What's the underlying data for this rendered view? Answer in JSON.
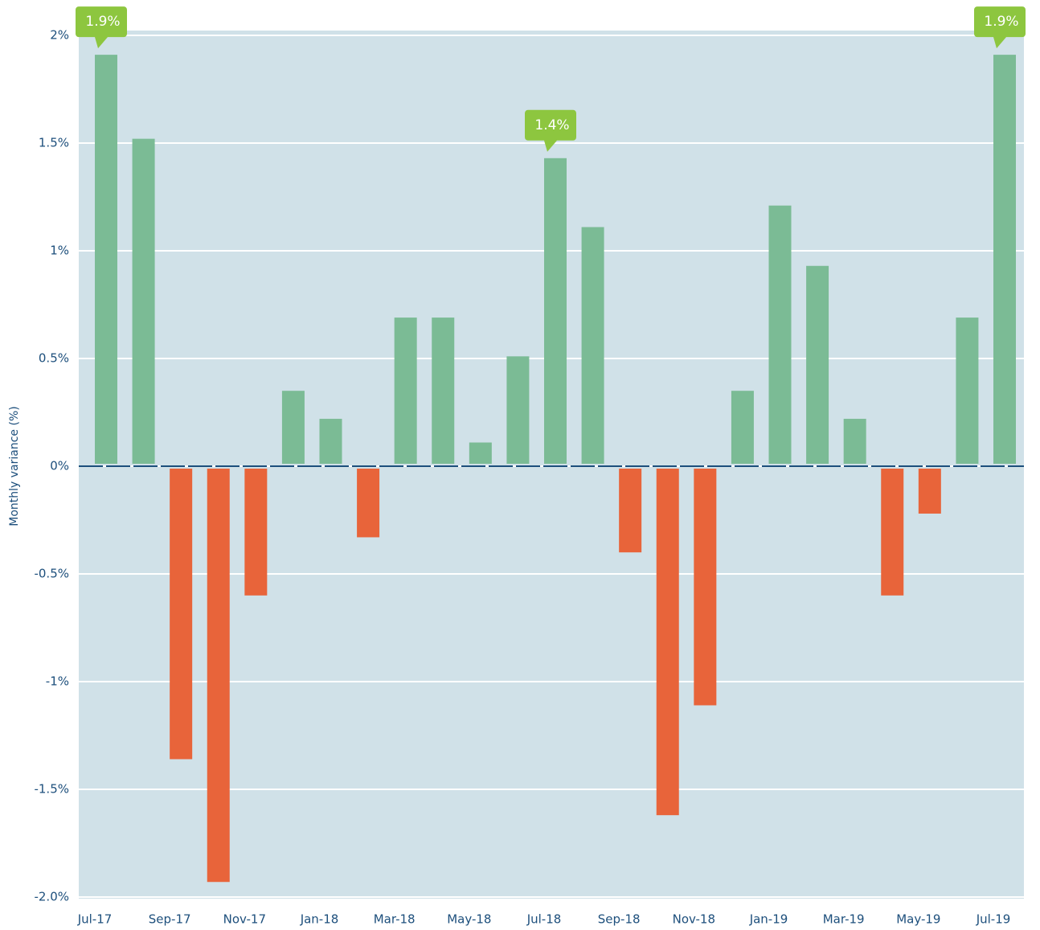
{
  "chart_data": {
    "type": "bar",
    "y_label": "Monthly variance (%)",
    "categories": [
      "Jul-17",
      null,
      "Sep-17",
      null,
      "Nov-17",
      null,
      "Jan-18",
      null,
      "Mar-18",
      null,
      "May-18",
      null,
      "Jul-18",
      null,
      "Sep-18",
      null,
      "Nov-18",
      null,
      "Jan-19",
      null,
      "Mar-19",
      null,
      "May-19",
      null,
      "Jul-19"
    ],
    "values": [
      1.91,
      1.52,
      -1.36,
      -1.93,
      -0.6,
      0.35,
      0.22,
      -0.33,
      0.69,
      0.69,
      0.11,
      0.51,
      1.43,
      1.11,
      -0.4,
      -1.62,
      -1.11,
      0.35,
      1.21,
      0.93,
      0.22,
      -0.6,
      -0.22,
      0.69,
      1.91
    ],
    "value_labels": [
      "1.9%",
      null,
      null,
      null,
      null,
      null,
      null,
      null,
      null,
      null,
      null,
      null,
      "1.4%",
      null,
      null,
      null,
      null,
      null,
      null,
      null,
      null,
      null,
      null,
      null,
      "1.9%"
    ],
    "positive_color": "#7bbb95",
    "negative_color": "#e8643a",
    "ylim": [
      -2.0,
      2.0
    ],
    "yticks": [
      {
        "value": 2,
        "label": "2%"
      },
      {
        "value": 1.5,
        "label": "1.5%"
      },
      {
        "value": 1,
        "label": "1%"
      },
      {
        "value": 0.5,
        "label": "0.5%"
      },
      {
        "value": 0,
        "label": "0%"
      },
      {
        "value": -0.5,
        "label": "-0.5%"
      },
      {
        "value": -1,
        "label": "-1%"
      },
      {
        "value": -1.5,
        "label": "-1.5%"
      },
      {
        "value": -2.0,
        "label": "-2.0%"
      }
    ],
    "grid": true
  }
}
